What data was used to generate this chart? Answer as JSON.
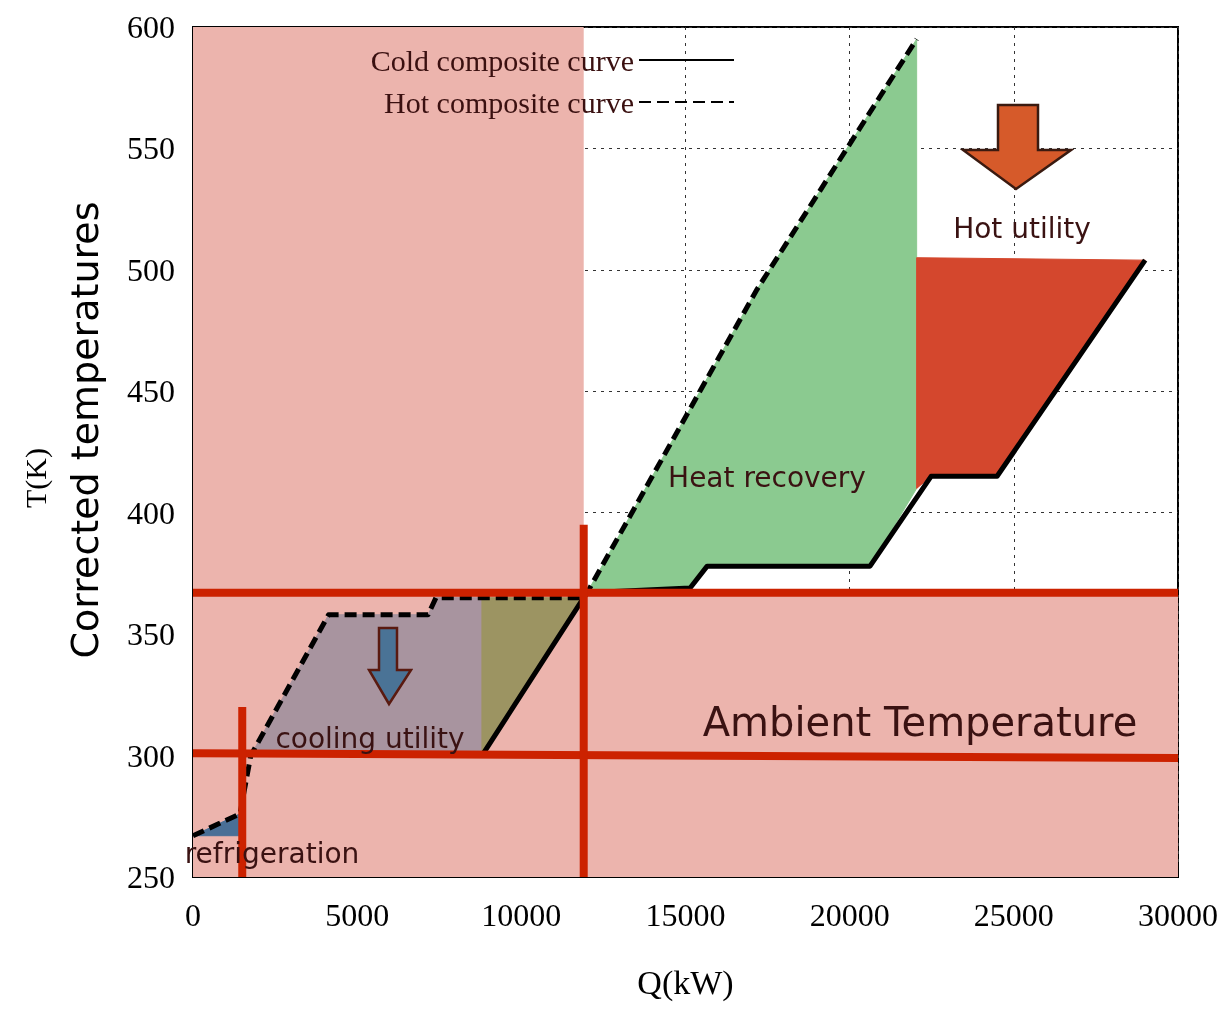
{
  "chart_data": {
    "type": "line",
    "ylabel": "T(K)",
    "xlabel": "Q(kW)",
    "xlim": [
      0,
      30000
    ],
    "xticks": [
      0,
      5000,
      10000,
      15000,
      20000,
      25000,
      30000
    ],
    "ylim": [
      250,
      600
    ],
    "yticks": [
      250,
      300,
      350,
      400,
      450,
      500,
      550,
      600
    ],
    "grid": true,
    "legend": "top",
    "marker": "none",
    "series": [
      {
        "type": "area",
        "color": "#4a6f96",
        "x": [
          0,
          1430,
          1430,
          0
        ],
        "values": [
          267,
          276,
          267,
          267
        ]
      },
      {
        "type": "area",
        "color": "#a8949f",
        "x": [
          1760,
          4130,
          7160,
          7400,
          8800,
          8800
        ],
        "values": [
          300,
          358,
          358,
          365,
          365,
          300
        ]
      },
      {
        "type": "area",
        "color": "#9c9462",
        "x": [
          8800,
          11900,
          8800
        ],
        "values": [
          365,
          365,
          300
        ]
      },
      {
        "type": "area",
        "color": "#8bca90",
        "x": [
          12000,
          17180,
          22040,
          22040,
          20620,
          15660,
          15140
        ],
        "values": [
          367,
          492,
          595,
          410,
          378,
          378,
          369
        ]
      },
      {
        "type": "area",
        "color": "#d4472d",
        "x": [
          22040,
          29000,
          24490,
          22480,
          22040
        ],
        "values": [
          505,
          504,
          415,
          415,
          410
        ]
      },
      {
        "name": "Cold composite curve",
        "color": "#000000",
        "line_style": "solid",
        "x": [
          8800,
          11900,
          12000,
          15140,
          15660,
          20620,
          22480,
          24490,
          29000
        ],
        "values": [
          300,
          365,
          367,
          369,
          378,
          378,
          415,
          415,
          504
        ]
      },
      {
        "name": "Hot composite curve",
        "color": "#000000",
        "line_style": "dashed",
        "x": [
          0,
          1430,
          1760,
          4130,
          7160,
          7400,
          11900,
          12000,
          17180,
          22040
        ],
        "values": [
          267,
          276,
          300,
          358,
          358,
          365,
          365,
          367,
          492,
          595
        ]
      },
      {
        "color": "#cc2200",
        "line_style": "solid",
        "x": [
          0,
          30000
        ],
        "values": [
          367,
          367
        ]
      },
      {
        "color": "#cc2200",
        "line_style": "solid",
        "x": [
          0,
          30000
        ],
        "values": [
          301,
          299
        ]
      },
      {
        "color": "#cc2200",
        "line_style": "solid",
        "x": [
          11900,
          11900
        ],
        "values": [
          395,
          250
        ]
      },
      {
        "color": "#cc2200",
        "line_style": "solid",
        "x": [
          1500,
          1500
        ],
        "values": [
          320,
          250
        ]
      }
    ],
    "bands": [
      {
        "axis": "x",
        "from": 0,
        "to": 11900,
        "color": "#ecb4ad"
      },
      {
        "axis": "y",
        "from": 250,
        "to": 367,
        "color": "#ecb4ad"
      }
    ],
    "annotations": [
      "Corrected temperatures",
      "Heat recovery",
      "Hot utility",
      "cooling utility",
      "refrigeration",
      "Ambient Temperature"
    ]
  }
}
